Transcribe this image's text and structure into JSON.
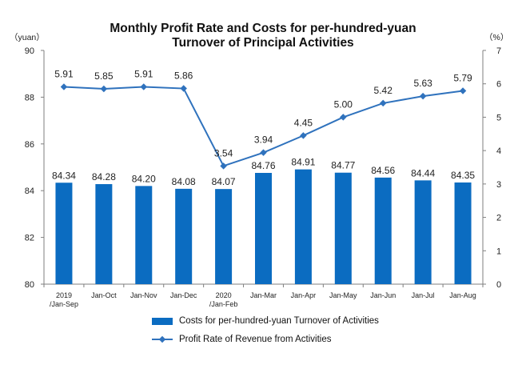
{
  "chart_data": {
    "type": "bar+line",
    "title_line1": "Monthly Profit Rate and Costs for per-hundred-yuan",
    "title_line2": "Turnover of Principal Activities",
    "left_unit": "（yuan）",
    "right_unit": "（%）",
    "categories": [
      [
        "2019",
        "/Jan-Sep"
      ],
      [
        "Jan-Oct"
      ],
      [
        "Jan-Nov"
      ],
      [
        "Jan-Dec"
      ],
      [
        "2020",
        "/Jan-Feb"
      ],
      [
        "Jan-Mar"
      ],
      [
        "Jan-Apr"
      ],
      [
        "Jan-May"
      ],
      [
        "Jan-Jun"
      ],
      [
        "Jan-Jul"
      ],
      [
        "Jan-Aug"
      ]
    ],
    "series": [
      {
        "name": "Costs for per-hundred-yuan Turnover of  Activities",
        "type": "bar",
        "axis": "left",
        "color": "#0b6cc1",
        "values": [
          84.34,
          84.28,
          84.2,
          84.08,
          84.07,
          84.76,
          84.91,
          84.77,
          84.56,
          84.44,
          84.35
        ],
        "labels": [
          "84.34",
          "84.28",
          "84.20",
          "84.08",
          "84.07",
          "84.76",
          "84.91",
          "84.77",
          "84.56",
          "84.44",
          "84.35"
        ]
      },
      {
        "name": "Profit Rate of Revenue from Activities",
        "type": "line",
        "axis": "right",
        "color": "#2f72bd",
        "values": [
          5.91,
          5.85,
          5.91,
          5.86,
          3.54,
          3.94,
          4.45,
          5.0,
          5.42,
          5.63,
          5.79
        ],
        "labels": [
          "5.91",
          "5.85",
          "5.91",
          "5.86",
          "3.54",
          "3.94",
          "4.45",
          "5.00",
          "5.42",
          "5.63",
          "5.79"
        ]
      }
    ],
    "left_axis": {
      "min": 80,
      "max": 90,
      "ticks": [
        80,
        82,
        84,
        86,
        88,
        90
      ]
    },
    "right_axis": {
      "min": 0,
      "max": 7,
      "ticks": [
        0,
        1,
        2,
        3,
        4,
        5,
        6,
        7
      ]
    },
    "grid": false,
    "legend_position": "bottom"
  }
}
